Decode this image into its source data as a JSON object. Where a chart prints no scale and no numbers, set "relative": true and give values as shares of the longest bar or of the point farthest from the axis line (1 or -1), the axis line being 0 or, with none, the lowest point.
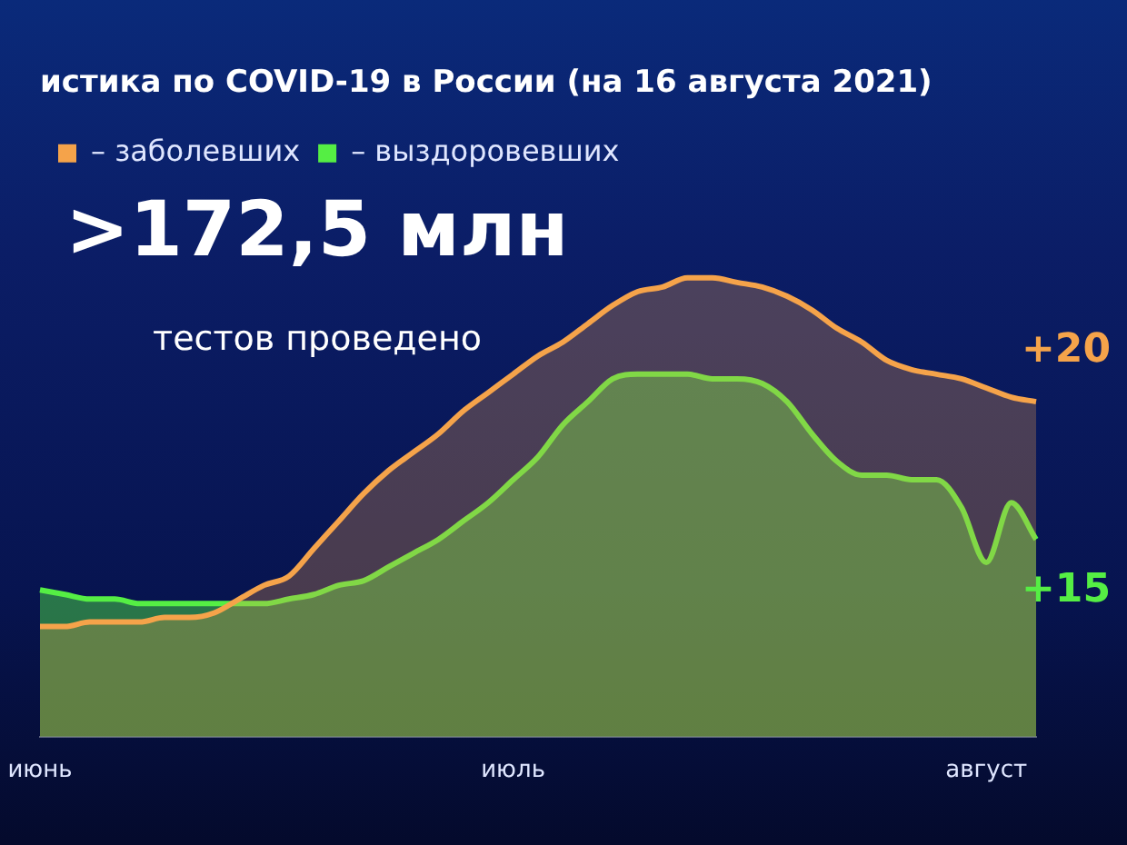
{
  "chart_data": {
    "type": "area",
    "relative": true,
    "title": "истика по COVID-19 в России (на 16 августа 2021)",
    "categories": [
      "июнь",
      null,
      null,
      null,
      null,
      null,
      null,
      null,
      null,
      null,
      null,
      null,
      null,
      null,
      null,
      null,
      null,
      null,
      null,
      "июль",
      null,
      null,
      null,
      null,
      null,
      null,
      null,
      null,
      null,
      null,
      null,
      null,
      null,
      null,
      null,
      null,
      null,
      null,
      "август",
      null,
      null
    ],
    "series": [
      {
        "name": "– заболевших",
        "color": "#f5a34a",
        "values": [
          0.24,
          0.24,
          0.25,
          0.25,
          0.25,
          0.26,
          0.26,
          0.27,
          0.3,
          0.33,
          0.35,
          0.41,
          0.47,
          0.53,
          0.58,
          0.62,
          0.66,
          0.71,
          0.75,
          0.79,
          0.83,
          0.86,
          0.9,
          0.94,
          0.97,
          0.98,
          1.0,
          1.0,
          0.99,
          0.98,
          0.96,
          0.93,
          0.89,
          0.86,
          0.82,
          0.8,
          0.79,
          0.78,
          0.76,
          0.74,
          0.73
        ]
      },
      {
        "name": "– выздоровевших",
        "color": "#55ee44",
        "values": [
          0.32,
          0.31,
          0.3,
          0.3,
          0.29,
          0.29,
          0.29,
          0.29,
          0.29,
          0.29,
          0.3,
          0.31,
          0.33,
          0.34,
          0.37,
          0.4,
          0.43,
          0.47,
          0.51,
          0.56,
          0.61,
          0.68,
          0.73,
          0.78,
          0.79,
          0.79,
          0.79,
          0.78,
          0.78,
          0.77,
          0.73,
          0.66,
          0.6,
          0.57,
          0.57,
          0.56,
          0.56,
          0.5,
          0.38,
          0.51,
          0.43
        ]
      }
    ],
    "annotations": [
      ">172,5 млн",
      "тестов проведено",
      "+20",
      "+15"
    ],
    "legend": "top left"
  }
}
